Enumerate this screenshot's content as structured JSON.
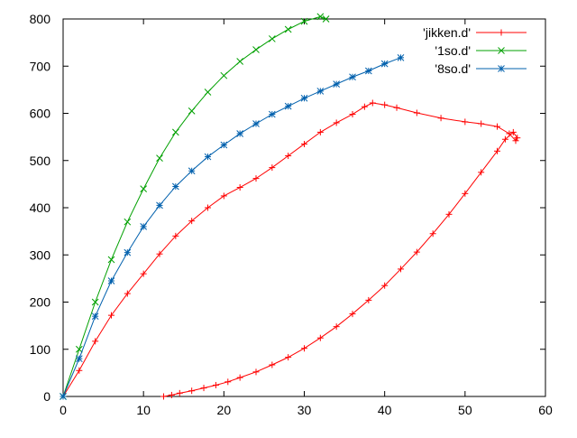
{
  "chart_data": {
    "type": "line",
    "title": "",
    "xlabel": "",
    "ylabel": "",
    "xlim": [
      0,
      60
    ],
    "ylim": [
      0,
      800
    ],
    "xticks": [
      0,
      10,
      20,
      30,
      40,
      50,
      60
    ],
    "yticks": [
      0,
      100,
      200,
      300,
      400,
      500,
      600,
      700,
      800
    ],
    "grid": false,
    "legend_position": "top-right",
    "series": [
      {
        "name": "'jikken.d'",
        "color": "#ff0000",
        "marker": "plus",
        "x": [
          12.5,
          13.5,
          14.5,
          16,
          17.5,
          19,
          20.5,
          22,
          24,
          26,
          28,
          30,
          32,
          34,
          36,
          38,
          40,
          42,
          44,
          46,
          48,
          50,
          52,
          54,
          55,
          56,
          56.5,
          56.3,
          55.5,
          54,
          52,
          50,
          47,
          44,
          41.5,
          40,
          38.5,
          37.5,
          36,
          34,
          32,
          30,
          28,
          26,
          24,
          22,
          20,
          18,
          16,
          14,
          12,
          10,
          8,
          6,
          4,
          2,
          0
        ],
        "y": [
          0,
          3,
          7,
          12,
          18,
          24,
          31,
          40,
          52,
          67,
          83,
          102,
          124,
          148,
          175,
          204,
          235,
          270,
          306,
          345,
          386,
          430,
          475,
          520,
          545,
          560,
          548,
          542,
          557,
          572,
          578,
          582,
          590,
          601,
          612,
          618,
          622,
          614,
          598,
          580,
          560,
          535,
          510,
          485,
          462,
          443,
          425,
          400,
          372,
          340,
          302,
          260,
          218,
          172,
          117,
          55,
          0
        ]
      },
      {
        "name": "'1so.d'",
        "color": "#00a000",
        "marker": "cross",
        "x": [
          0,
          2,
          4,
          6,
          8,
          10,
          12,
          14,
          16,
          18,
          20,
          22,
          24,
          26,
          28,
          30,
          32,
          32.7
        ],
        "y": [
          0,
          100,
          200,
          290,
          370,
          440,
          505,
          560,
          605,
          645,
          680,
          710,
          735,
          758,
          778,
          795,
          805,
          800
        ]
      },
      {
        "name": "'8so.d'",
        "color": "#0060ad",
        "marker": "star",
        "x": [
          0,
          2,
          4,
          6,
          8,
          10,
          12,
          14,
          16,
          18,
          20,
          22,
          24,
          26,
          28,
          30,
          32,
          34,
          36,
          38,
          40,
          42
        ],
        "y": [
          0,
          80,
          170,
          245,
          305,
          360,
          405,
          445,
          478,
          508,
          533,
          557,
          578,
          598,
          615,
          632,
          647,
          662,
          677,
          690,
          705,
          718
        ]
      }
    ]
  }
}
